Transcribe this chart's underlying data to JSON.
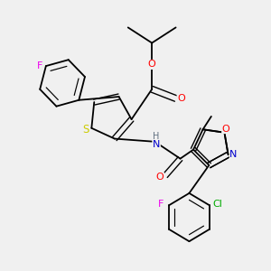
{
  "background_color": "#f0f0f0",
  "atom_colors": {
    "F": "#ee00ee",
    "O": "#ff0000",
    "N": "#0000cc",
    "S": "#cccc00",
    "Cl": "#00aa00",
    "C": "#000000",
    "H": "#607080"
  },
  "lw": 1.3,
  "lw_double": 1.0
}
